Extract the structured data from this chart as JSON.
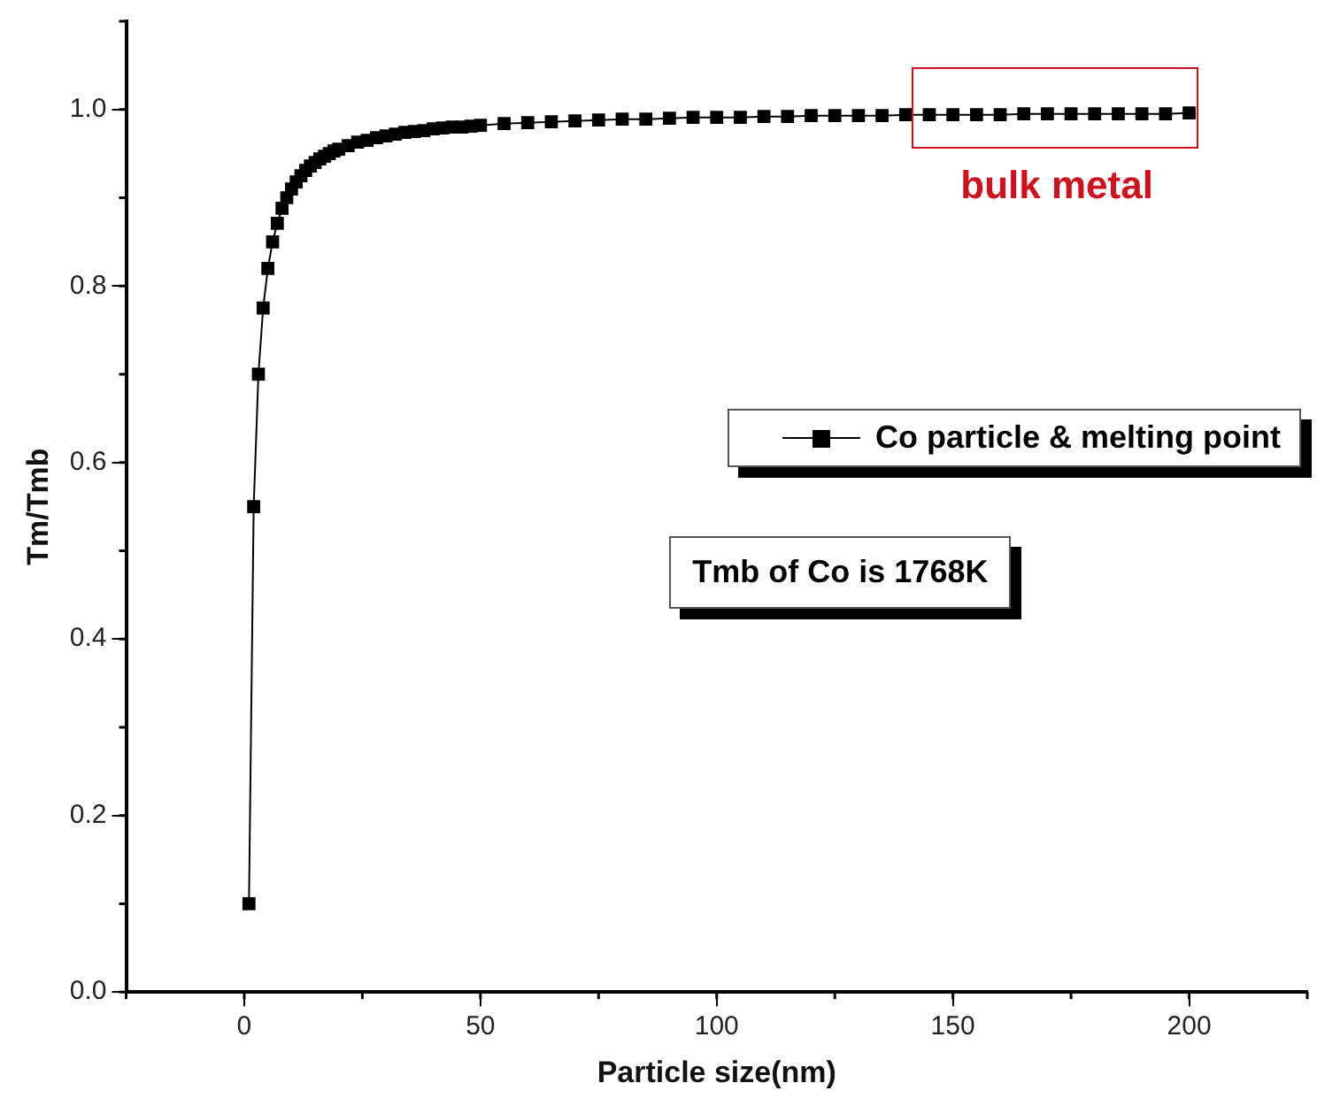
{
  "chart_data": {
    "type": "line",
    "xlabel": "Particle size(nm)",
    "ylabel": "Tm/Tmb",
    "x": [
      1,
      2,
      3,
      4,
      5,
      6,
      7,
      8,
      9,
      10,
      11,
      12,
      13,
      14,
      15,
      16,
      17,
      18,
      19,
      20,
      22,
      24,
      26,
      28,
      30,
      32,
      34,
      36,
      38,
      40,
      42,
      44,
      46,
      48,
      50,
      55,
      60,
      65,
      70,
      75,
      80,
      85,
      90,
      95,
      100,
      105,
      110,
      115,
      120,
      125,
      130,
      135,
      140,
      145,
      150,
      155,
      160,
      165,
      170,
      175,
      180,
      185,
      190,
      195,
      200
    ],
    "series": [
      {
        "name": "Co particle & melting point",
        "color": "#000000",
        "values": [
          0.1,
          0.55,
          0.7,
          0.775,
          0.82,
          0.85,
          0.871,
          0.888,
          0.9,
          0.91,
          0.918,
          0.925,
          0.931,
          0.936,
          0.94,
          0.944,
          0.947,
          0.95,
          0.953,
          0.955,
          0.959,
          0.963,
          0.965,
          0.968,
          0.97,
          0.972,
          0.974,
          0.975,
          0.976,
          0.978,
          0.979,
          0.98,
          0.98,
          0.981,
          0.982,
          0.984,
          0.985,
          0.986,
          0.987,
          0.988,
          0.989,
          0.989,
          0.99,
          0.991,
          0.991,
          0.991,
          0.992,
          0.992,
          0.993,
          0.993,
          0.993,
          0.993,
          0.994,
          0.994,
          0.994,
          0.994,
          0.994,
          0.995,
          0.995,
          0.995,
          0.995,
          0.995,
          0.995,
          0.995,
          0.996
        ]
      }
    ],
    "xlim": [
      -25,
      225
    ],
    "xticks": [
      0,
      50,
      100,
      150,
      200
    ],
    "ylim": [
      0,
      1.1
    ],
    "yticks": [
      {
        "value": 0,
        "label": "0.0"
      },
      {
        "value": 0.2,
        "label": "0.2"
      },
      {
        "value": 0.4,
        "label": "0.4"
      },
      {
        "value": 0.6,
        "label": "0.6"
      },
      {
        "value": 0.8,
        "label": "0.8"
      },
      {
        "value": 1,
        "label": "1.0"
      }
    ],
    "marker": "square",
    "line_style": "solid",
    "grid": false,
    "legend": "right",
    "annotations": [
      {
        "text": "bulk metal",
        "x": 172,
        "y": 1.0
      },
      "Tmb of Co is 1768K"
    ]
  }
}
